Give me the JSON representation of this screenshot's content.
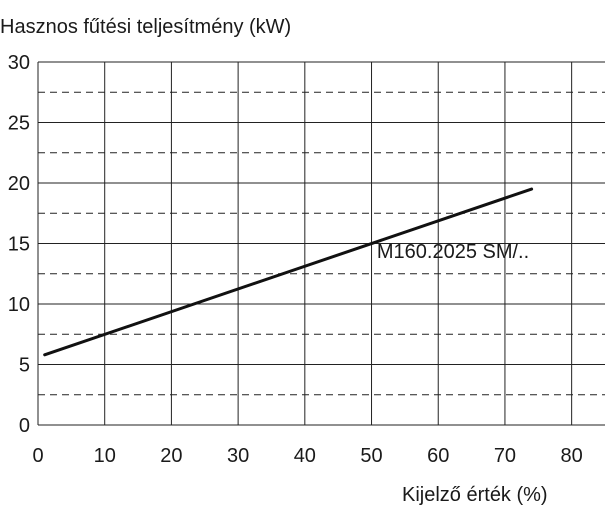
{
  "chart_data": {
    "type": "line",
    "title": "",
    "ylabel": "Hasznos fűtési teljesítmény (kW)",
    "xlabel": "Kijelző érték (%)",
    "xlim": [
      0,
      85
    ],
    "ylim": [
      0,
      30
    ],
    "x_ticks": [
      "0",
      "10",
      "20",
      "30",
      "40",
      "50",
      "60",
      "70",
      "80"
    ],
    "y_ticks": [
      "0",
      "5",
      "10",
      "15",
      "20",
      "25",
      "30"
    ],
    "grid": true,
    "minor_grid": "dashed",
    "series": [
      {
        "name": "M160.2025 SM/..",
        "x": [
          1,
          74
        ],
        "y": [
          5.8,
          19.5
        ]
      }
    ]
  }
}
